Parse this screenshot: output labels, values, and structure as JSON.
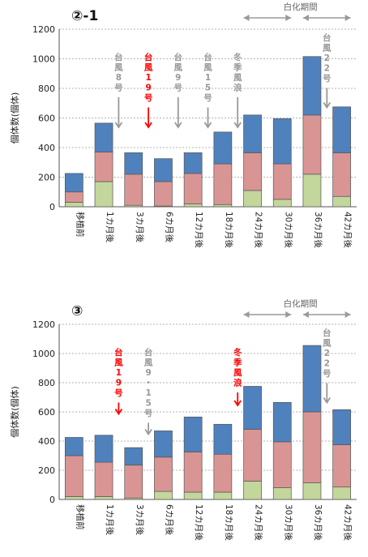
{
  "colors": {
    "bottom": "#c3d69b",
    "middle": "#d99594",
    "top": "#4f81bd",
    "gray_annotation": "#999999",
    "red_annotation": "#ff0000"
  },
  "chart_data": [
    {
      "type": "bar",
      "title": "②-1",
      "ylabel": "個体数(個体)",
      "ylim": [
        0,
        1200
      ],
      "yticks": [
        0,
        200,
        400,
        600,
        800,
        1000,
        1200
      ],
      "grid": true,
      "categories": [
        "移植前",
        "1カ月後",
        "3カ月後",
        "6カ月後",
        "12カ月後",
        "18カ月後",
        "24カ月後",
        "30カ月後",
        "36カ月後",
        "42カ月後"
      ],
      "series": [
        {
          "values": [
            30,
            170,
            10,
            5,
            20,
            15,
            110,
            50,
            220,
            70
          ]
        },
        {
          "values": [
            70,
            200,
            210,
            165,
            205,
            275,
            255,
            240,
            400,
            295
          ]
        },
        {
          "values": [
            125,
            195,
            145,
            155,
            140,
            215,
            255,
            305,
            395,
            310
          ]
        }
      ],
      "totals": [
        225,
        565,
        365,
        325,
        365,
        505,
        620,
        595,
        1015,
        675
      ],
      "whitening_label": "白化期間",
      "annotations": [
        {
          "text": "台風8号",
          "color": "gray",
          "index": 2
        },
        {
          "text": "台風19号",
          "color": "red",
          "index": 3
        },
        {
          "text": "台風9号",
          "color": "gray",
          "index": 4
        },
        {
          "text": "台風15号",
          "color": "gray",
          "index": 5
        },
        {
          "text": "冬季風浪",
          "color": "gray",
          "index": 6
        },
        {
          "text": "台風22号",
          "color": "gray",
          "index": 9
        }
      ]
    },
    {
      "type": "bar",
      "title": "③",
      "ylabel": "個体数(個体)",
      "ylim": [
        0,
        1200
      ],
      "yticks": [
        0,
        200,
        400,
        600,
        800,
        1000,
        1200
      ],
      "grid": true,
      "categories": [
        "移植前",
        "1カ月後",
        "3カ月後",
        "6カ月後",
        "12カ月後",
        "18カ月後",
        "24カ月後",
        "30カ月後",
        "36カ月後",
        "42カ月後"
      ],
      "series": [
        {
          "values": [
            20,
            20,
            10,
            55,
            50,
            50,
            125,
            80,
            115,
            85
          ]
        },
        {
          "values": [
            280,
            235,
            225,
            235,
            275,
            260,
            355,
            315,
            485,
            290
          ]
        },
        {
          "values": [
            125,
            185,
            120,
            180,
            240,
            205,
            295,
            270,
            455,
            240
          ]
        }
      ],
      "totals": [
        425,
        440,
        355,
        470,
        565,
        515,
        775,
        665,
        1055,
        615
      ],
      "whitening_label": "白化期間",
      "annotations": [
        {
          "text": "台風19号",
          "color": "red",
          "index": 2
        },
        {
          "text": "台風9・15号",
          "color": "gray",
          "index": 3
        },
        {
          "text": "冬季風浪",
          "color": "red",
          "index": 6
        },
        {
          "text": "台風22号",
          "color": "gray",
          "index": 9
        }
      ]
    }
  ]
}
